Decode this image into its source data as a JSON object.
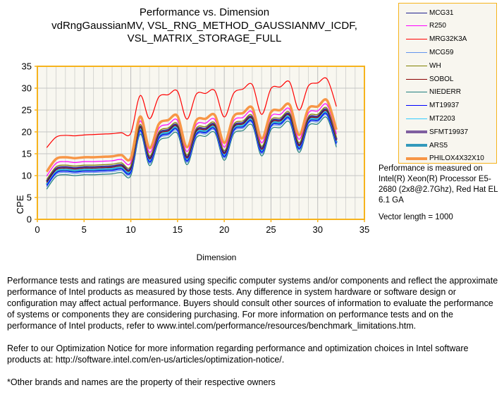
{
  "chart_data": {
    "type": "line",
    "title": [
      "Performance vs. Dimension",
      "vdRngGaussianMV,  VSL_RNG_METHOD_GAUSSIANMV_ICDF,",
      "VSL_MATRIX_STORAGE_FULL"
    ],
    "xlabel": "Dimension",
    "ylabel": "CPE",
    "xlim": [
      0,
      35
    ],
    "ylim": [
      0,
      35
    ],
    "xticks": [
      0,
      5,
      10,
      15,
      20,
      25,
      30,
      35
    ],
    "yticks": [
      0,
      5,
      10,
      15,
      20,
      25,
      30,
      35
    ],
    "grid": true,
    "legend_position": "top-right",
    "x": [
      1,
      2,
      3,
      4,
      5,
      6,
      7,
      8,
      9,
      10,
      11,
      12,
      13,
      14,
      15,
      16,
      17,
      18,
      19,
      20,
      21,
      22,
      23,
      24,
      25,
      26,
      27,
      28,
      29,
      30,
      31,
      32
    ],
    "series": [
      {
        "name": "MCG31",
        "color": "#1f1f8f",
        "width": 1.2,
        "values": [
          8.7,
          11.6,
          12.0,
          11.8,
          12.0,
          12.0,
          12.1,
          12.2,
          12.5,
          11.8,
          21.3,
          14.1,
          19.6,
          20.5,
          21.4,
          14.3,
          20.4,
          20.8,
          21.6,
          15.3,
          21.3,
          22.1,
          23.3,
          16.3,
          22.3,
          22.8,
          24.0,
          17.1,
          23.1,
          23.6,
          25.0,
          18.3
        ]
      },
      {
        "name": "R250",
        "color": "#ff00ff",
        "width": 1.2,
        "values": [
          9.9,
          12.8,
          13.2,
          13.0,
          13.2,
          13.2,
          13.3,
          13.4,
          13.7,
          13.0,
          22.5,
          15.3,
          20.8,
          21.7,
          22.6,
          15.5,
          21.6,
          22.0,
          22.8,
          16.5,
          22.5,
          23.3,
          24.5,
          17.5,
          23.5,
          24.0,
          25.2,
          18.3,
          24.3,
          24.8,
          26.2,
          19.5
        ]
      },
      {
        "name": "MRG32K3A",
        "color": "#ff0000",
        "width": 1.2,
        "values": [
          16.4,
          18.8,
          19.2,
          19.1,
          19.3,
          19.4,
          19.5,
          19.6,
          19.8,
          19.7,
          28.3,
          23.0,
          28.0,
          28.5,
          29.3,
          22.9,
          28.6,
          28.8,
          29.4,
          23.4,
          28.8,
          29.8,
          30.8,
          24.0,
          29.9,
          30.3,
          31.4,
          25.0,
          30.5,
          31.2,
          32.1,
          25.8
        ]
      },
      {
        "name": "MCG59",
        "color": "#6495ed",
        "width": 1.2,
        "values": [
          7.4,
          10.3,
          10.7,
          10.5,
          10.7,
          10.7,
          10.8,
          10.9,
          11.2,
          10.5,
          20.0,
          12.8,
          18.3,
          19.2,
          20.1,
          13.0,
          19.1,
          19.5,
          20.3,
          14.0,
          20.0,
          20.8,
          22.0,
          15.0,
          21.0,
          21.5,
          22.7,
          15.8,
          21.8,
          22.3,
          23.7,
          17.0
        ]
      },
      {
        "name": "WH",
        "color": "#808000",
        "width": 1.2,
        "values": [
          9.1,
          12.0,
          12.4,
          12.2,
          12.4,
          12.4,
          12.5,
          12.6,
          12.9,
          12.2,
          21.7,
          14.5,
          20.0,
          20.9,
          21.8,
          14.7,
          20.8,
          21.2,
          22.0,
          15.7,
          21.7,
          22.5,
          23.7,
          16.7,
          22.7,
          23.2,
          24.4,
          17.5,
          23.5,
          24.0,
          25.4,
          18.7
        ]
      },
      {
        "name": "SOBOL",
        "color": "#8b0000",
        "width": 1.2,
        "values": [
          8.4,
          11.3,
          11.7,
          11.5,
          11.7,
          11.7,
          11.8,
          11.9,
          12.2,
          11.5,
          21.0,
          13.8,
          19.3,
          20.2,
          21.1,
          14.0,
          20.1,
          20.5,
          21.3,
          15.0,
          21.0,
          21.8,
          23.0,
          16.0,
          22.0,
          22.5,
          23.7,
          16.8,
          22.8,
          23.3,
          24.7,
          18.0
        ]
      },
      {
        "name": "NIEDERR",
        "color": "#1f7f7f",
        "width": 1.2,
        "values": [
          6.9,
          9.8,
          10.2,
          10.0,
          10.2,
          10.2,
          10.3,
          10.4,
          10.7,
          10.0,
          19.5,
          12.3,
          17.8,
          18.7,
          19.6,
          12.5,
          18.6,
          19.0,
          19.8,
          13.5,
          19.5,
          20.3,
          21.5,
          14.5,
          20.5,
          21.0,
          22.2,
          15.3,
          21.3,
          21.8,
          23.2,
          16.5
        ]
      },
      {
        "name": "MT19937",
        "color": "#0000ff",
        "width": 1.2,
        "values": [
          7.7,
          10.6,
          11.0,
          10.8,
          11.0,
          11.0,
          11.1,
          11.2,
          11.5,
          10.8,
          20.3,
          13.1,
          18.6,
          19.5,
          20.4,
          13.3,
          19.4,
          19.8,
          20.6,
          14.3,
          20.3,
          21.1,
          22.3,
          15.3,
          21.3,
          21.8,
          23.0,
          16.1,
          22.1,
          22.6,
          24.0,
          17.3
        ]
      },
      {
        "name": "MT2203",
        "color": "#33ccff",
        "width": 1.2,
        "values": [
          8.2,
          11.1,
          11.5,
          11.3,
          11.5,
          11.5,
          11.6,
          11.7,
          12.0,
          11.3,
          20.8,
          13.6,
          19.1,
          20.0,
          20.9,
          13.8,
          19.9,
          20.3,
          21.1,
          14.8,
          20.8,
          21.6,
          22.8,
          15.8,
          21.8,
          22.3,
          23.5,
          16.6,
          22.6,
          23.1,
          24.5,
          17.8
        ]
      },
      {
        "name": "SFMT19937",
        "color": "#7f5fa0",
        "width": 3.5,
        "values": [
          8.6,
          11.5,
          11.9,
          11.7,
          11.9,
          11.9,
          12.0,
          12.1,
          12.4,
          11.7,
          21.2,
          14.0,
          19.5,
          20.4,
          21.3,
          14.2,
          20.3,
          20.7,
          21.5,
          15.2,
          21.2,
          22.0,
          23.2,
          16.2,
          22.2,
          22.7,
          23.9,
          17.0,
          23.0,
          23.5,
          24.9,
          18.2
        ]
      },
      {
        "name": "ARS5",
        "color": "#3399bb",
        "width": 3.5,
        "values": [
          7.9,
          10.8,
          11.2,
          11.0,
          11.2,
          11.2,
          11.3,
          11.4,
          11.7,
          11.0,
          20.5,
          13.3,
          18.8,
          19.7,
          20.6,
          13.5,
          19.6,
          20.0,
          20.8,
          14.5,
          20.5,
          21.3,
          22.5,
          15.5,
          21.5,
          22.0,
          23.2,
          16.3,
          22.3,
          22.8,
          24.2,
          17.5
        ]
      },
      {
        "name": "PHILOX4X32X10",
        "color": "#f79646",
        "width": 3.5,
        "values": [
          10.9,
          13.8,
          14.2,
          14.0,
          14.2,
          14.2,
          14.3,
          14.4,
          14.7,
          14.0,
          23.5,
          16.3,
          21.8,
          22.7,
          23.6,
          16.5,
          22.6,
          23.0,
          23.8,
          17.5,
          23.5,
          24.3,
          25.5,
          18.5,
          24.5,
          25.0,
          26.2,
          19.3,
          25.3,
          25.8,
          27.2,
          20.5
        ]
      }
    ]
  },
  "note": {
    "platform": "Performance is measured on Intel(R) Xeon(R) Processor E5-2680 (2x8@2.7Ghz), Red Hat EL 6.1 GA",
    "vector_length": "Vector length = 1000"
  },
  "footer": {
    "disclaimer": "Performance tests and ratings are measured using specific computer systems and/or components and reflect the approximate performance of Intel products as measured by those tests. Any difference in system hardware or software design or configuration may affect actual performance. Buyers should consult other sources of information to evaluate the performance of systems or components they are considering purchasing. For more information on performance tests and on the performance of Intel products, refer to www.intel.com/performance/resources/benchmark_limitations.htm.",
    "optimization": "Refer to our Optimization Notice for more information regarding performance and optimization choices in Intel software products at: http://software.intel.com/en-us/articles/optimization-notice/.",
    "trademark": "*Other brands and names are the property of their respective owners"
  }
}
